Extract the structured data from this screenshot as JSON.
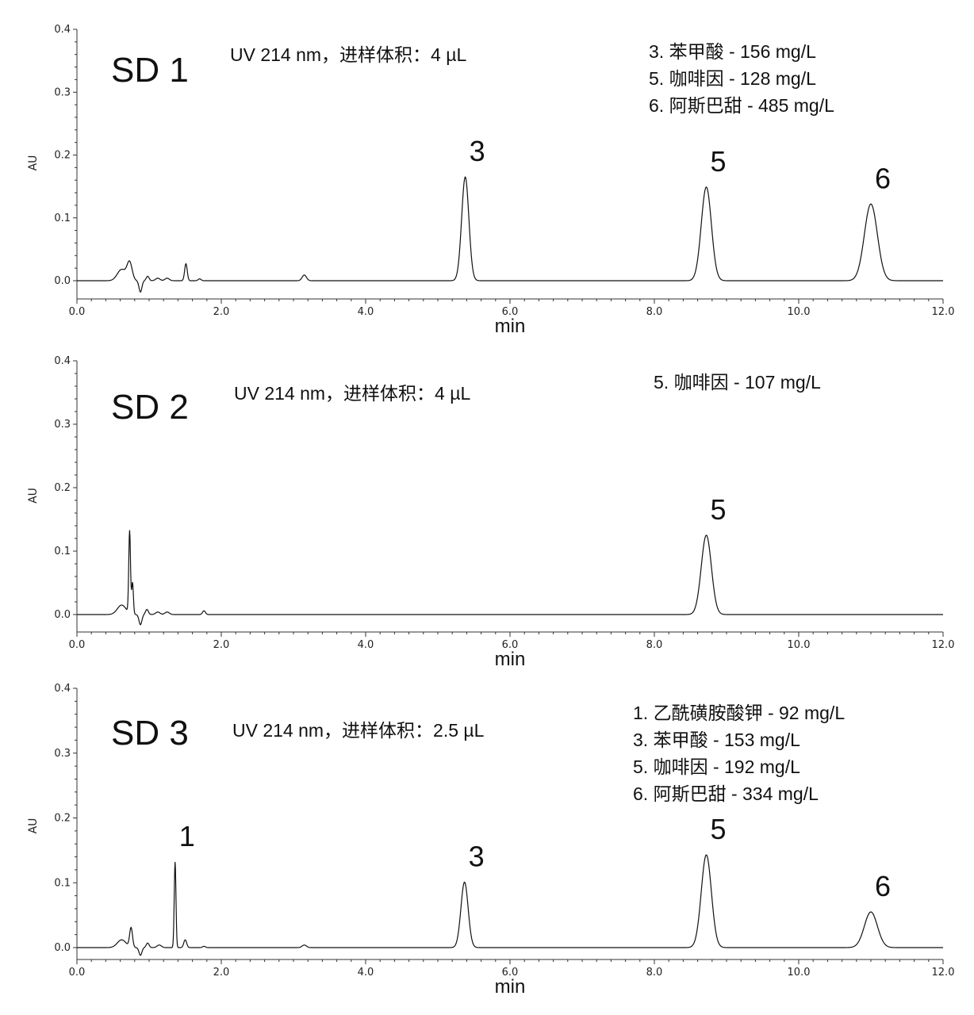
{
  "chart_data": [
    {
      "type": "line",
      "title": "SD 1",
      "condition": "UV 214 nm，进样体积：4 µL",
      "xlabel": "min",
      "ylabel": "AU",
      "xlim": [
        0.0,
        12.0
      ],
      "ylim": [
        -0.05,
        0.4
      ],
      "x_ticks": [
        "0.0",
        "2.0",
        "4.0",
        "6.0",
        "8.0",
        "10.0",
        "12.0"
      ],
      "y_ticks": [
        "0.0",
        "0.1",
        "0.2",
        "0.3",
        "0.4"
      ],
      "legend": [
        "3. 苯甲酸 - 156 mg/L",
        "5. 咖啡因 - 128 mg/L",
        "6. 阿斯巴甜 - 485 mg/L"
      ],
      "peaks": [
        {
          "label": "3",
          "x": 5.38,
          "y": 0.165
        },
        {
          "label": "5",
          "x": 8.72,
          "y": 0.149
        },
        {
          "label": "6",
          "x": 11.0,
          "y": 0.122
        }
      ]
    },
    {
      "type": "line",
      "title": "SD 2",
      "condition": "UV 214 nm，进样体积：4 µL",
      "xlabel": "min",
      "ylabel": "AU",
      "xlim": [
        0.0,
        12.0
      ],
      "ylim": [
        -0.05,
        0.4
      ],
      "x_ticks": [
        "0.0",
        "2.0",
        "4.0",
        "6.0",
        "8.0",
        "10.0",
        "12.0"
      ],
      "y_ticks": [
        "0.0",
        "0.1",
        "0.2",
        "0.3",
        "0.4"
      ],
      "legend": [
        "5. 咖啡因 - 107 mg/L"
      ],
      "peaks": [
        {
          "label": "5",
          "x": 8.72,
          "y": 0.125
        }
      ]
    },
    {
      "type": "line",
      "title": "SD 3",
      "condition": "UV 214 nm，进样体积：2.5 µL",
      "xlabel": "min",
      "ylabel": "AU",
      "xlim": [
        0.0,
        12.0
      ],
      "ylim": [
        -0.05,
        0.4
      ],
      "x_ticks": [
        "0.0",
        "2.0",
        "4.0",
        "6.0",
        "8.0",
        "10.0",
        "12.0"
      ],
      "y_ticks": [
        "0.0",
        "0.1",
        "0.2",
        "0.3",
        "0.4"
      ],
      "legend": [
        "1. 乙酰磺胺酸钾 - 92 mg/L",
        "3. 苯甲酸 - 153 mg/L",
        "5. 咖啡因 - 192 mg/L",
        "6. 阿斯巴甜 - 334 mg/L"
      ],
      "peaks": [
        {
          "label": "1",
          "x": 1.36,
          "y": 0.132
        },
        {
          "label": "3",
          "x": 5.37,
          "y": 0.101
        },
        {
          "label": "5",
          "x": 8.72,
          "y": 0.143
        },
        {
          "label": "6",
          "x": 11.0,
          "y": 0.055
        }
      ]
    }
  ]
}
